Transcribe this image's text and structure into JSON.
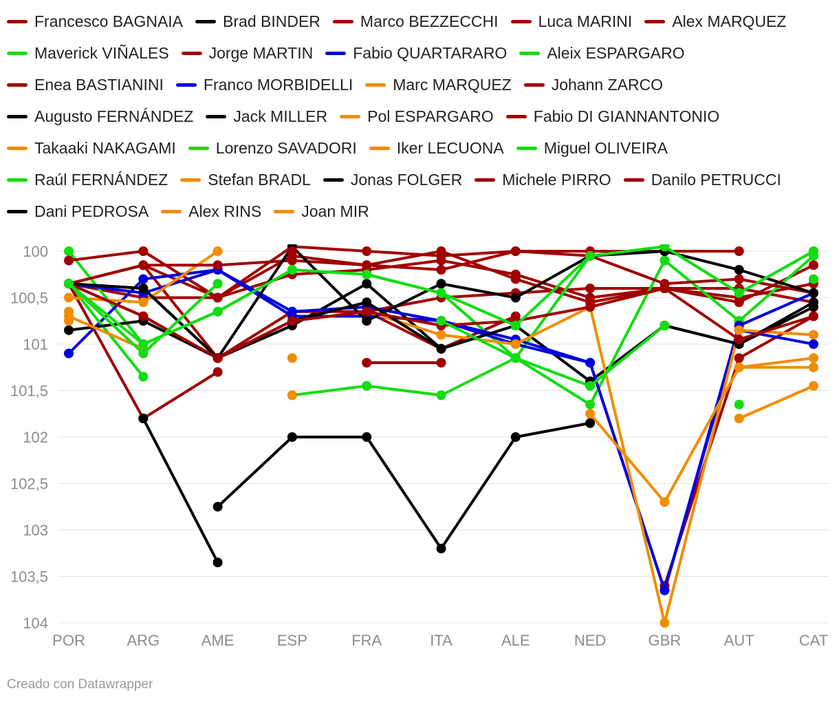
{
  "chart_data": {
    "type": "line",
    "title": "",
    "xlabel": "",
    "ylabel": "",
    "y_reversed": true,
    "ylim": [
      100,
      104
    ],
    "y_ticks": [
      {
        "value": 100,
        "label": "100"
      },
      {
        "value": 100.5,
        "label": "100,5"
      },
      {
        "value": 101,
        "label": "101"
      },
      {
        "value": 101.5,
        "label": "101,5"
      },
      {
        "value": 102,
        "label": "102"
      },
      {
        "value": 102.5,
        "label": "102,5"
      },
      {
        "value": 103,
        "label": "103"
      },
      {
        "value": 103.5,
        "label": "103,5"
      },
      {
        "value": 104,
        "label": "104"
      }
    ],
    "categories": [
      "POR",
      "ARG",
      "AME",
      "ESP",
      "FRA",
      "ITA",
      "ALE",
      "NED",
      "GBR",
      "AUT",
      "CAT"
    ],
    "colors": {
      "red": "#a00000",
      "black": "#000000",
      "blue": "#0000dd",
      "green": "#11dd11",
      "orange": "#f28c00"
    },
    "series": [
      {
        "name": "Francesco BAGNAIA",
        "color": "#a00000",
        "values": [
          100.35,
          100.5,
          100.5,
          100.25,
          100.2,
          100.1,
          100.25,
          100.5,
          100.4,
          100.4,
          100.55
        ]
      },
      {
        "name": "Brad BINDER",
        "color": "#000000",
        "values": [
          100.35,
          100.4,
          101.15,
          100.8,
          100.35,
          101.05,
          100.8,
          101.4,
          100.8,
          101.0,
          100.6
        ]
      },
      {
        "name": "Marco BEZZECCHI",
        "color": "#a00000",
        "values": [
          100.35,
          100.15,
          100.5,
          100.05,
          100.15,
          100.0,
          100.3,
          100.55,
          100.4,
          100.55,
          100.15
        ]
      },
      {
        "name": "Luca MARINI",
        "color": "#a00000",
        "values": [
          100.35,
          100.15,
          101.15,
          100.65,
          100.65,
          100.5,
          100.45,
          100.4,
          100.4,
          100.5,
          100.35
        ]
      },
      {
        "name": "Alex MARQUEZ",
        "color": "#a00000",
        "values": [
          100.35,
          100.7,
          101.15,
          100.75,
          100.65,
          101.05,
          100.7,
          null,
          103.6,
          101.15,
          100.7
        ]
      },
      {
        "name": "Maverick VIÑALES",
        "color": "#11dd11",
        "values": [
          100.0,
          101.0,
          100.65,
          100.2,
          100.25,
          100.45,
          101.15,
          100.05,
          99.95,
          100.45,
          100.0
        ]
      },
      {
        "name": "Jorge MARTIN",
        "color": "#a00000",
        "values": [
          100.1,
          100.0,
          100.5,
          99.95,
          100.0,
          100.05,
          100.0,
          100.0,
          100.0,
          100.0,
          null
        ]
      },
      {
        "name": "Fabio QUARTARARO",
        "color": "#0000dd",
        "values": [
          101.1,
          100.3,
          100.2,
          100.7,
          100.7,
          100.75,
          101.0,
          101.2,
          103.65,
          100.85,
          101.0
        ]
      },
      {
        "name": "Aleix ESPARGARO",
        "color": "#11dd11",
        "values": [
          100.35,
          101.35,
          null,
          101.55,
          101.45,
          101.55,
          101.15,
          101.65,
          100.1,
          100.75,
          100.05
        ]
      },
      {
        "name": "Enea BASTIANINI",
        "color": "#a00000",
        "values": [
          100.35,
          101.8,
          101.3,
          null,
          101.2,
          101.2,
          null,
          null,
          null,
          null,
          null
        ]
      },
      {
        "name": "Franco MORBIDELLI",
        "color": "#0000dd",
        "values": [
          100.35,
          100.45,
          100.2,
          100.65,
          100.6,
          100.75,
          100.95,
          101.2,
          103.65,
          100.8,
          100.45
        ]
      },
      {
        "name": "Marc MARQUEZ",
        "color": "#f28c00",
        "values": [
          100.5,
          100.55,
          100.0,
          null,
          100.65,
          100.9,
          101.0,
          100.6,
          104.0,
          100.85,
          100.9
        ]
      },
      {
        "name": "Johann ZARCO",
        "color": "#a00000",
        "values": [
          100.35,
          100.15,
          100.15,
          100.1,
          100.15,
          100.2,
          100.0,
          100.05,
          100.35,
          100.3,
          100.45
        ]
      },
      {
        "name": "Augusto FERNÁNDEZ",
        "color": "#000000",
        "values": [
          100.35,
          100.4,
          101.15,
          100.75,
          100.55,
          101.05,
          100.8,
          null,
          100.8,
          101.0,
          100.55
        ]
      },
      {
        "name": "Jack MILLER",
        "color": "#000000",
        "values": [
          100.85,
          100.75,
          101.15,
          99.95,
          100.75,
          100.35,
          100.5,
          100.05,
          100.0,
          100.2,
          100.45
        ]
      },
      {
        "name": "Pol ESPARGARO",
        "color": "#f28c00",
        "values": [
          null,
          null,
          null,
          null,
          null,
          null,
          null,
          null,
          null,
          101.25,
          101.15
        ]
      },
      {
        "name": "Fabio DI GIANNANTONIO",
        "color": "#a00000",
        "values": [
          100.35,
          100.7,
          101.15,
          100.75,
          100.65,
          100.8,
          100.75,
          100.6,
          100.4,
          100.95,
          100.7
        ]
      },
      {
        "name": "Takaaki NAKAGAMI",
        "color": "#f28c00",
        "values": [
          100.7,
          101.05,
          null,
          101.55,
          null,
          null,
          null,
          101.75,
          102.7,
          101.25,
          101.25
        ]
      },
      {
        "name": "Lorenzo SAVADORI",
        "color": "#11dd11",
        "values": [
          null,
          null,
          null,
          null,
          null,
          null,
          null,
          null,
          null,
          101.65,
          null
        ]
      },
      {
        "name": "Iker LECUONA",
        "color": "#f28c00",
        "values": [
          null,
          null,
          null,
          101.15,
          null,
          null,
          null,
          null,
          null,
          null,
          null
        ]
      },
      {
        "name": "Miguel OLIVEIRA",
        "color": "#11dd11",
        "values": [
          100.35,
          101.1,
          100.35,
          null,
          null,
          100.75,
          101.15,
          101.45,
          100.8,
          null,
          100.3
        ]
      },
      {
        "name": "Raúl FERNÁNDEZ",
        "color": "#11dd11",
        "values": [
          100.35,
          101.0,
          100.65,
          100.2,
          100.25,
          100.45,
          100.8,
          100.05,
          99.95,
          100.45,
          100.0
        ]
      },
      {
        "name": "Stefan BRADL",
        "color": "#f28c00",
        "values": [
          100.75,
          null,
          null,
          null,
          null,
          null,
          null,
          null,
          null,
          101.8,
          101.45
        ]
      },
      {
        "name": "Jonas FOLGER",
        "color": "#000000",
        "values": [
          null,
          null,
          102.75,
          102.0,
          102.0,
          103.2,
          102.0,
          101.85,
          null,
          null,
          null
        ]
      },
      {
        "name": "Michele PIRRO",
        "color": "#a00000",
        "values": [
          null,
          null,
          null,
          100.0,
          null,
          null,
          null,
          null,
          null,
          null,
          null
        ]
      },
      {
        "name": "Danilo PETRUCCI",
        "color": "#a00000",
        "values": [
          null,
          null,
          null,
          null,
          null,
          100.05,
          null,
          null,
          null,
          null,
          null
        ]
      },
      {
        "name": "Dani PEDROSA",
        "color": "#000000",
        "values": [
          null,
          101.8,
          103.35,
          null,
          null,
          null,
          null,
          null,
          null,
          null,
          null
        ]
      },
      {
        "name": "Alex RINS",
        "color": "#f28c00",
        "values": [
          100.65,
          null,
          null,
          null,
          null,
          null,
          null,
          null,
          null,
          null,
          null
        ]
      },
      {
        "name": "Joan MIR",
        "color": "#f28c00",
        "values": [
          null,
          null,
          null,
          null,
          null,
          null,
          null,
          null,
          null,
          null,
          null
        ]
      }
    ]
  },
  "legend_rows": [
    [
      0,
      1,
      2,
      3,
      4
    ],
    [
      5,
      6,
      7,
      8
    ],
    [
      9,
      10,
      11,
      12
    ],
    [
      13,
      14,
      15,
      16
    ],
    [
      17,
      18,
      19,
      20
    ],
    [
      21,
      22,
      23,
      24,
      25
    ],
    [
      26,
      27,
      28
    ]
  ],
  "footer": {
    "text": "Creado con Datawrapper"
  }
}
